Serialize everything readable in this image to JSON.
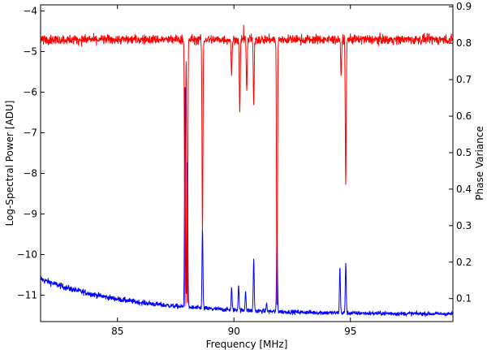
{
  "chart_data": {
    "type": "line",
    "xlabel": "Frequency [MHz]",
    "ylabel": "Log-Spectral Power [ADU]",
    "y2label": "Phase Variance",
    "xlim": [
      81.7,
      99.4
    ],
    "ylim": [
      -11.65,
      -3.85
    ],
    "y2lim": [
      0.037,
      0.905
    ],
    "grid": false,
    "legend": "none",
    "xticks": [
      85,
      90,
      95
    ],
    "yticks": [
      -4,
      -5,
      -6,
      -7,
      -8,
      -9,
      -10,
      -11
    ],
    "y2ticks": [
      0.1,
      0.2,
      0.3,
      0.4,
      0.5,
      0.6,
      0.7,
      0.8,
      0.9
    ],
    "series": [
      {
        "axis": "right",
        "color": "#ff0000",
        "baseline": 0.81,
        "noise": 0.013,
        "dips": [
          {
            "x": 87.9,
            "y": 0.055
          },
          {
            "x": 88.0,
            "y": 0.06
          },
          {
            "x": 88.65,
            "y": 0.28
          },
          {
            "x": 89.9,
            "y": 0.71
          },
          {
            "x": 90.25,
            "y": 0.61
          },
          {
            "x": 90.55,
            "y": 0.67
          },
          {
            "x": 90.85,
            "y": 0.63
          },
          {
            "x": 91.85,
            "y": 0.055
          },
          {
            "x": 94.6,
            "y": 0.71
          },
          {
            "x": 94.8,
            "y": 0.41
          }
        ]
      },
      {
        "axis": "left",
        "color": "#0000ff",
        "baseline_start": -10.6,
        "baseline_end": -11.47,
        "noise": 0.05,
        "peaks": [
          {
            "x": 87.9,
            "y": -5.7
          },
          {
            "x": 88.0,
            "y": -7.6
          },
          {
            "x": 88.65,
            "y": -9.35
          },
          {
            "x": 89.9,
            "y": -10.8
          },
          {
            "x": 90.2,
            "y": -10.75
          },
          {
            "x": 90.5,
            "y": -10.9
          },
          {
            "x": 90.85,
            "y": -10.1
          },
          {
            "x": 91.4,
            "y": -11.2
          },
          {
            "x": 91.85,
            "y": -9.4
          },
          {
            "x": 94.55,
            "y": -10.3
          },
          {
            "x": 94.8,
            "y": -10.2
          }
        ]
      }
    ]
  }
}
